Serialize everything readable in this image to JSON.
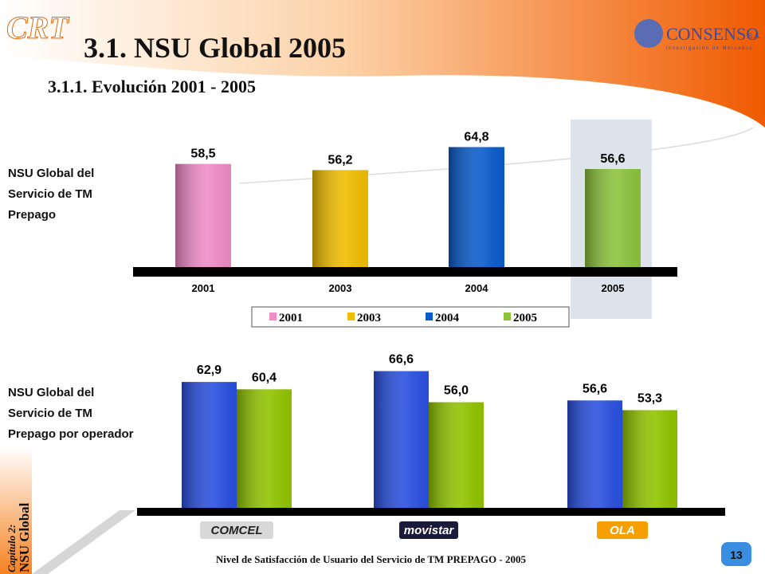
{
  "header": {
    "logo": "CRT",
    "title": "3.1. NSU Global 2005",
    "subtitle": "3.1.1. Evolución 2001 - 2005",
    "brand": "CONSENSO",
    "brand_suffix": "S.A.",
    "brand_tagline": "Investigación de Mercados"
  },
  "chart_data": [
    {
      "type": "bar",
      "side_label": [
        "NSU Global del",
        "Servicio de TM",
        "Prepago"
      ],
      "categories": [
        "2001",
        "2003",
        "2004",
        "2005"
      ],
      "values": [
        58.5,
        56.2,
        64.8,
        56.6
      ],
      "value_labels": [
        "58,5",
        "56,2",
        "64,8",
        "56,6"
      ],
      "colors": [
        "#f08cc8",
        "#f0be00",
        "#0a5ccc",
        "#8cc43c"
      ],
      "ylim": [
        20,
        70
      ],
      "legend": true,
      "highlight": "2005"
    },
    {
      "type": "grouped_bar",
      "side_label": [
        "NSU Global del",
        "Servicio de TM",
        "Prepago por operador"
      ],
      "categories": [
        "COMCEL",
        "movistar",
        "OLA"
      ],
      "series": [
        {
          "color": "#2a50e0",
          "values": [
            62.9,
            66.6,
            56.6
          ],
          "value_labels": [
            "62,9",
            "66,6",
            "56,6"
          ]
        },
        {
          "color": "#92c400",
          "values": [
            60.4,
            56.0,
            53.3
          ],
          "value_labels": [
            "60,4",
            "56,0",
            "53,3"
          ]
        }
      ],
      "ylim": [
        20,
        70
      ]
    }
  ],
  "footer": "Nivel de Satisfacción de Usuario del Servicio de TM PREPAGO - 2005",
  "page_number": "13",
  "chapter": [
    "Capítulo 2:",
    "NSU Global"
  ]
}
